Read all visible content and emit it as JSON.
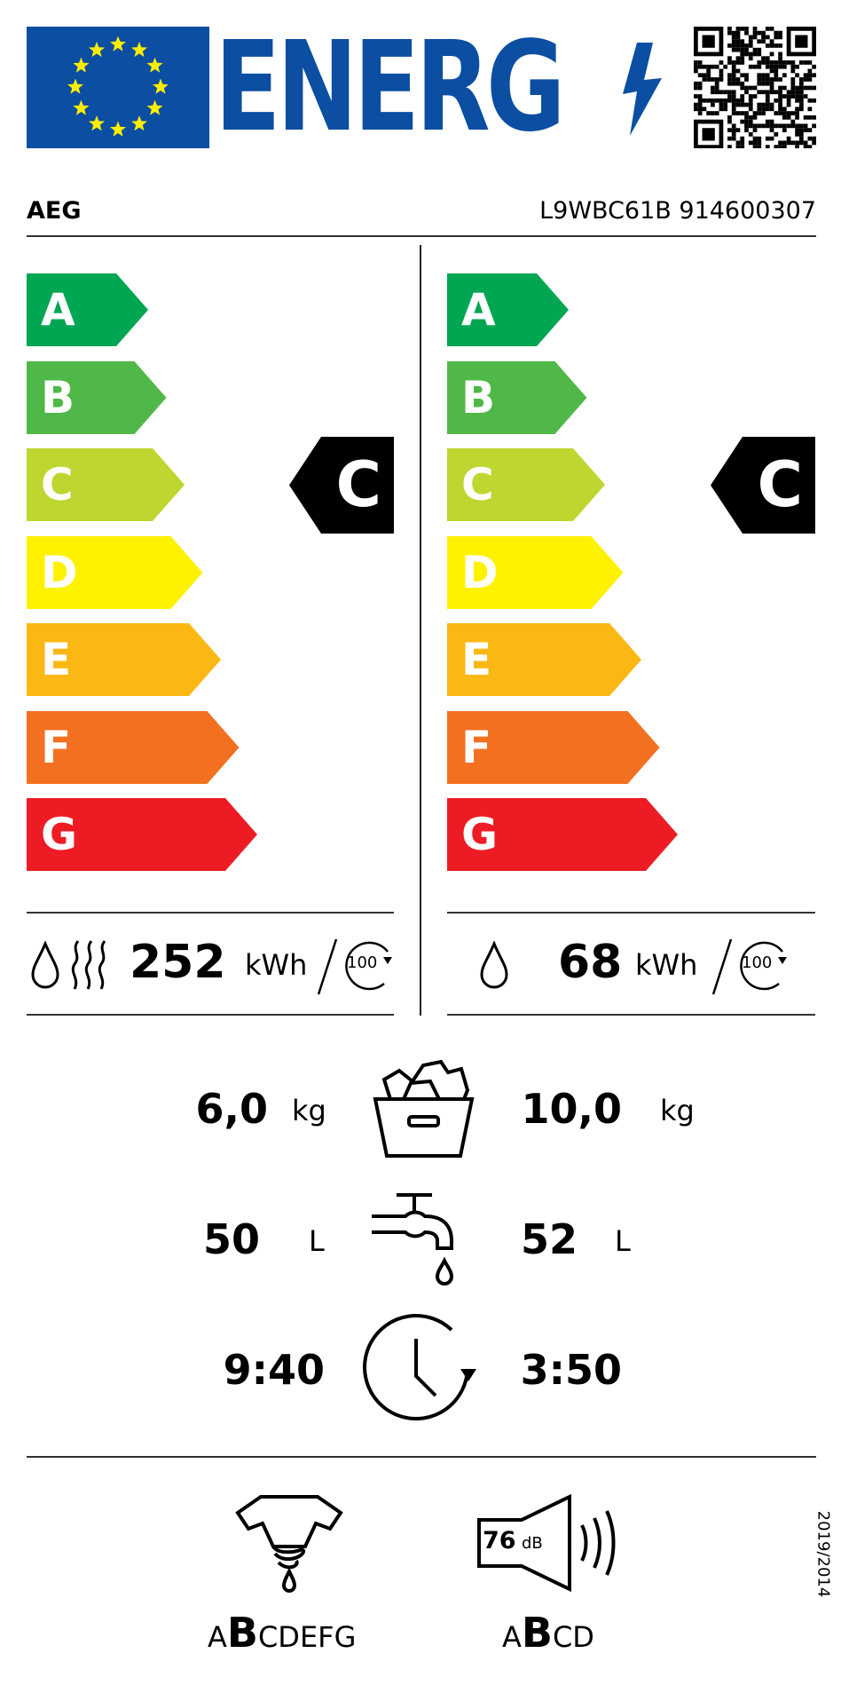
{
  "header": {
    "energy_word": "ENERG",
    "supplier": "AEG",
    "model": "L9WBC61B 914600307"
  },
  "scale": {
    "classes": [
      "A",
      "B",
      "C",
      "D",
      "E",
      "F",
      "G"
    ],
    "colors": [
      "#00a651",
      "#50b848",
      "#bed62f",
      "#fff200",
      "#fbb814",
      "#f37021",
      "#ed1c24"
    ]
  },
  "wash_dry": {
    "energy_class": "C",
    "energy_value": "252",
    "energy_unit": "kWh",
    "cycles": "100",
    "capacity": "6,0",
    "capacity_unit": "kg",
    "water": "50",
    "water_unit": "L",
    "duration": "9:40"
  },
  "wash": {
    "energy_class": "C",
    "energy_value": "68",
    "energy_unit": "kWh",
    "cycles": "100",
    "capacity": "10,0",
    "capacity_unit": "kg",
    "water": "52",
    "water_unit": "L",
    "duration": "3:50"
  },
  "spin": {
    "classes_before": "A",
    "class": "B",
    "classes_after": "CDEFG"
  },
  "noise": {
    "value": "76",
    "unit": "dB",
    "classes_before": "A",
    "class": "B",
    "classes_after": "CD"
  },
  "regulation": "2019/2014",
  "colors": {
    "eu_blue": "#0b4ea2",
    "star_yellow": "#ffed00"
  }
}
